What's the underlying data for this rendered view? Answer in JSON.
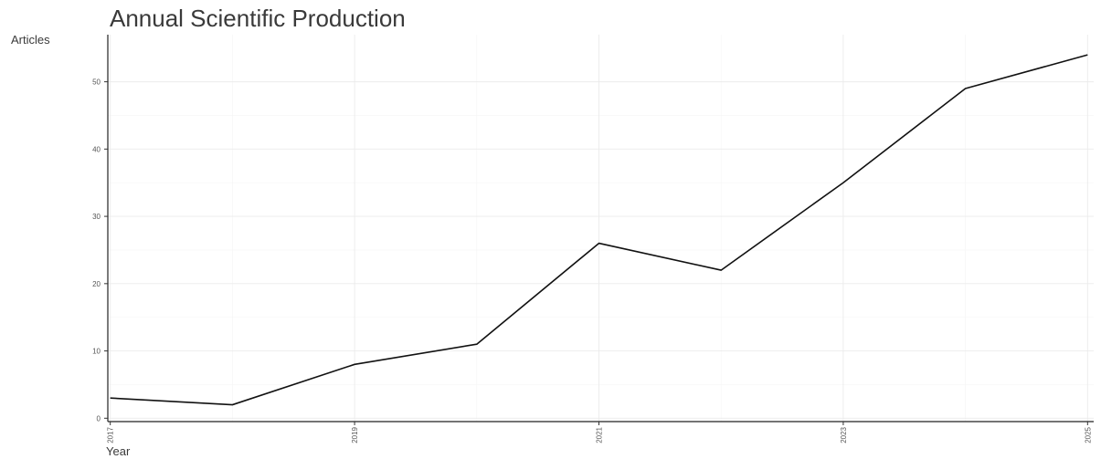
{
  "chart_data": {
    "type": "line",
    "title": "Annual Scientific Production",
    "xlabel": "Year",
    "ylabel": "Articles",
    "x": [
      2017,
      2018,
      2019,
      2020,
      2021,
      2022,
      2023,
      2024,
      2025
    ],
    "series": [
      {
        "values": [
          3,
          2,
          8,
          11,
          26,
          22,
          35,
          49,
          54
        ]
      }
    ],
    "xticks": [
      2017,
      2019,
      2021,
      2023,
      2025
    ],
    "yticks": [
      0,
      10,
      20,
      30,
      40,
      50
    ],
    "xlim": [
      2016.98,
      2025.05
    ],
    "ylim": [
      -0.5,
      57
    ],
    "grid": true,
    "line_color": "#111111"
  }
}
